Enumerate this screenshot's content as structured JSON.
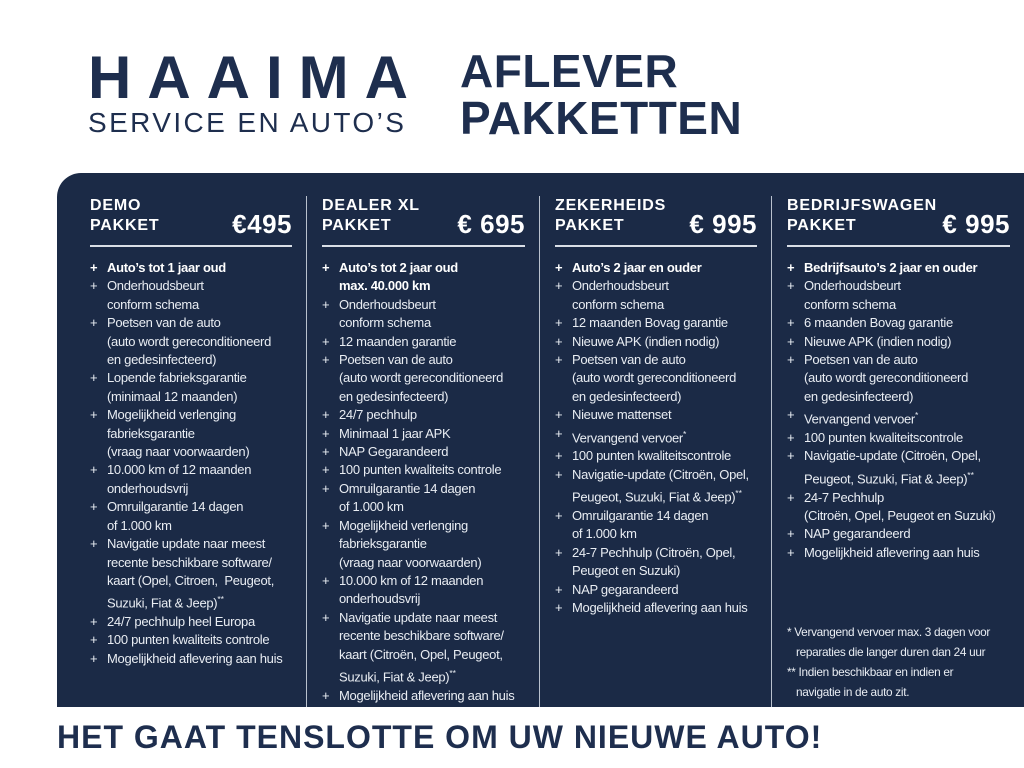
{
  "brand": {
    "name": "HAAIMA",
    "subtitle": "SERVICE EN AUTO’S"
  },
  "heading": {
    "line1": "AFLEVER",
    "line2": "PAKKETTEN"
  },
  "bullet": "+",
  "tagline": "HET GAAT TENSLOTTE OM UW NIEUWE AUTO!",
  "colors": {
    "navy": "#1e2e4e",
    "panel": "#1b2a46",
    "light_text": "#e9edf3",
    "white": "#ffffff",
    "divider": "#b9c1ce",
    "rule": "#d9dee6"
  },
  "packages": [
    {
      "title_lines": [
        "DEMO",
        "PAKKET"
      ],
      "price": "€495",
      "items": [
        {
          "bold": true,
          "lines": [
            "Auto’s tot 1 jaar oud"
          ]
        },
        {
          "lines": [
            "Onderhoudsbeurt",
            "conform schema"
          ]
        },
        {
          "lines": [
            "Poetsen van de auto",
            "(auto wordt gereconditioneerd",
            "en gedesinfecteerd)"
          ]
        },
        {
          "lines": [
            "Lopende fabrieksgarantie",
            "(minimaal 12 maanden)"
          ]
        },
        {
          "lines": [
            "Mogelijkheid verlenging",
            "fabrieksgarantie",
            "(vraag naar voorwaarden)"
          ]
        },
        {
          "lines": [
            "10.000 km of 12 maanden",
            "onderhoudsvrij"
          ]
        },
        {
          "lines": [
            "Omruilgarantie 14 dagen",
            "of 1.000 km"
          ]
        },
        {
          "lines": [
            "Navigatie update naar meest",
            "recente beschikbare software/",
            "kaart (Opel, Citroen,  Peugeot,",
            "Suzuki, Fiat & Jeep)**"
          ]
        },
        {
          "lines": [
            "24/7 pechhulp heel Europa"
          ]
        },
        {
          "lines": [
            "100 punten kwaliteits controle"
          ]
        },
        {
          "lines": [
            "Mogelijkheid aflevering aan huis"
          ]
        }
      ]
    },
    {
      "title_lines": [
        "DEALER XL",
        "PAKKET"
      ],
      "price": "€ 695",
      "items": [
        {
          "bold": true,
          "lines": [
            "Auto’s tot 2 jaar oud",
            "max. 40.000 km"
          ]
        },
        {
          "lines": [
            "Onderhoudsbeurt",
            "conform schema"
          ]
        },
        {
          "lines": [
            "12 maanden garantie"
          ]
        },
        {
          "lines": [
            "Poetsen van de auto",
            "(auto wordt gereconditioneerd",
            "en gedesinfecteerd)"
          ]
        },
        {
          "lines": [
            "24/7 pechhulp"
          ]
        },
        {
          "lines": [
            "Minimaal 1 jaar APK"
          ]
        },
        {
          "lines": [
            "NAP Gegarandeerd"
          ]
        },
        {
          "lines": [
            "100 punten kwaliteits controle"
          ]
        },
        {
          "lines": [
            "Omruilgarantie 14 dagen",
            "of 1.000 km"
          ]
        },
        {
          "lines": [
            "Mogelijkheid verlenging",
            "fabrieksgarantie",
            "(vraag naar voorwaarden)"
          ]
        },
        {
          "lines": [
            "10.000 km of 12 maanden",
            "onderhoudsvrij"
          ]
        },
        {
          "lines": [
            "Navigatie update naar meest",
            "recente beschikbare software/",
            "kaart (Citroën, Opel, Peugeot,",
            "Suzuki, Fiat & Jeep)**"
          ]
        },
        {
          "lines": [
            "Mogelijkheid aflevering aan huis"
          ]
        }
      ]
    },
    {
      "title_lines": [
        "ZEKERHEIDS",
        "PAKKET"
      ],
      "price": "€ 995",
      "items": [
        {
          "bold": true,
          "lines": [
            "Auto’s 2 jaar en ouder"
          ]
        },
        {
          "lines": [
            "Onderhoudsbeurt",
            "conform schema"
          ]
        },
        {
          "lines": [
            "12 maanden Bovag garantie"
          ]
        },
        {
          "lines": [
            "Nieuwe APK (indien nodig)"
          ]
        },
        {
          "lines": [
            "Poetsen van de auto",
            "(auto wordt gereconditioneerd",
            "en gedesinfecteerd)"
          ]
        },
        {
          "lines": [
            "Nieuwe mattenset"
          ]
        },
        {
          "lines": [
            "Vervangend vervoer*"
          ]
        },
        {
          "lines": [
            "100 punten kwaliteitscontrole"
          ]
        },
        {
          "lines": [
            "Navigatie-update (Citroën, Opel,",
            "Peugeot, Suzuki, Fiat & Jeep)**"
          ]
        },
        {
          "lines": [
            "Omruilgarantie 14 dagen",
            "of 1.000 km"
          ]
        },
        {
          "lines": [
            "24-7 Pechhulp (Citroën, Opel,",
            "Peugeot en Suzuki)"
          ]
        },
        {
          "lines": [
            "NAP gegarandeerd"
          ]
        },
        {
          "lines": [
            "Mogelijkheid aflevering aan huis"
          ]
        }
      ]
    },
    {
      "title_lines": [
        "BEDRIJFSWAGEN",
        "PAKKET"
      ],
      "price": "€ 995",
      "items": [
        {
          "bold": true,
          "lines": [
            "Bedrijfsauto’s 2 jaar en ouder"
          ]
        },
        {
          "lines": [
            "Onderhoudsbeurt",
            "conform schema"
          ]
        },
        {
          "lines": [
            "6 maanden Bovag garantie"
          ]
        },
        {
          "lines": [
            "Nieuwe APK (indien nodig)"
          ]
        },
        {
          "lines": [
            "Poetsen van de auto",
            "(auto wordt gereconditioneerd",
            "en gedesinfecteerd)"
          ]
        },
        {
          "lines": [
            "Vervangend vervoer*"
          ]
        },
        {
          "lines": [
            "100 punten kwaliteitscontrole"
          ]
        },
        {
          "lines": [
            "Navigatie-update (Citroën, Opel,",
            "Peugeot, Suzuki, Fiat & Jeep)**"
          ]
        },
        {
          "lines": [
            "24-7 Pechhulp",
            "(Citroën, Opel, Peugeot en Suzuki)"
          ]
        },
        {
          "lines": [
            "NAP gegarandeerd"
          ]
        },
        {
          "lines": [
            "Mogelijkheid aflevering aan huis"
          ]
        }
      ]
    }
  ],
  "footnotes": [
    {
      "lines": [
        "* Vervangend vervoer max. 3 dagen voor",
        "reparaties die langer duren dan 24 uur"
      ]
    },
    {
      "lines": [
        "** Indien beschikbaar en indien er",
        "navigatie in de auto zit."
      ]
    }
  ]
}
